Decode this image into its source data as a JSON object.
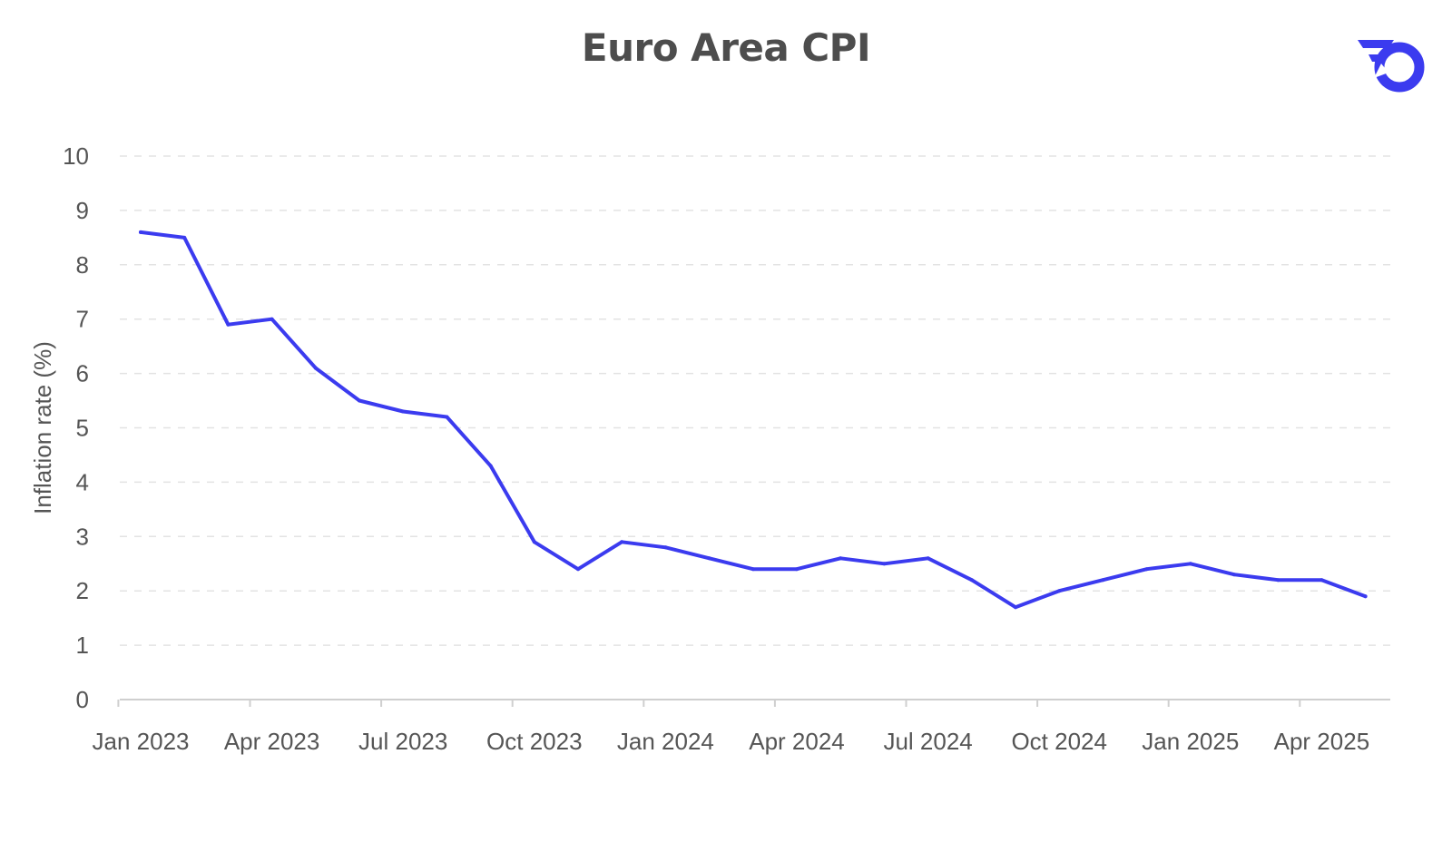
{
  "title": "Euro Area CPI",
  "logo_icon": "speed-ring-logo-icon",
  "colors": {
    "series": "#3b3bef",
    "grid": "#e3e3e3",
    "axis": "#cfcfcf",
    "text": "#555555",
    "title": "#4d4d4d"
  },
  "chart_data": {
    "type": "line",
    "title": "Euro Area CPI",
    "xlabel": "",
    "ylabel": "Inflation rate (%)",
    "ylim": [
      0,
      10
    ],
    "yticks": [
      "0",
      "1",
      "2",
      "3",
      "4",
      "5",
      "6",
      "7",
      "8",
      "9",
      "10"
    ],
    "xticks": [
      "Jan 2023",
      "Apr 2023",
      "Jul 2023",
      "Oct 2023",
      "Jan 2024",
      "Apr 2024",
      "Jul 2024",
      "Oct 2024",
      "Jan 2025",
      "Apr 2025"
    ],
    "grid": true,
    "series": [
      {
        "x": [
          "Jan 2023",
          "Feb 2023",
          "Mar 2023",
          "Apr 2023",
          "May 2023",
          "Jun 2023",
          "Jul 2023",
          "Aug 2023",
          "Sep 2023",
          "Oct 2023",
          "Nov 2023",
          "Dec 2023",
          "Jan 2024",
          "Feb 2024",
          "Mar 2024",
          "Apr 2024",
          "May 2024",
          "Jun 2024",
          "Jul 2024",
          "Aug 2024",
          "Sep 2024",
          "Oct 2024",
          "Nov 2024",
          "Dec 2024",
          "Jan 2025",
          "Feb 2025",
          "Mar 2025",
          "Apr 2025",
          "May 2025"
        ],
        "values": [
          8.6,
          8.5,
          6.9,
          7.0,
          6.1,
          5.5,
          5.3,
          5.2,
          4.3,
          2.9,
          2.4,
          2.9,
          2.8,
          2.6,
          2.4,
          2.4,
          2.6,
          2.5,
          2.6,
          2.2,
          1.7,
          2.0,
          2.2,
          2.4,
          2.5,
          2.3,
          2.2,
          2.2,
          1.9
        ]
      }
    ]
  }
}
